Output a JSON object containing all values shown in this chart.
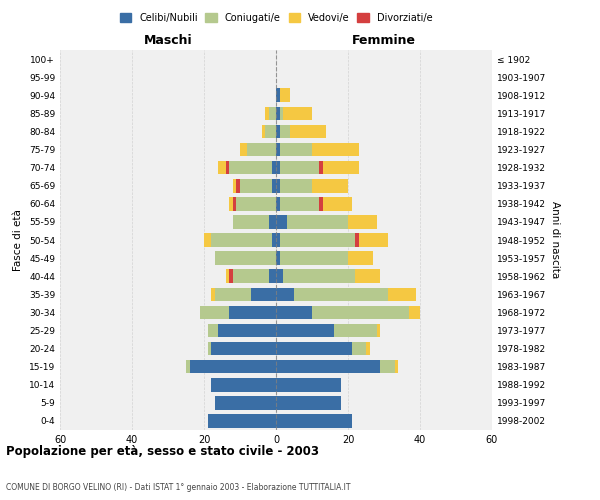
{
  "age_groups": [
    "0-4",
    "5-9",
    "10-14",
    "15-19",
    "20-24",
    "25-29",
    "30-34",
    "35-39",
    "40-44",
    "45-49",
    "50-54",
    "55-59",
    "60-64",
    "65-69",
    "70-74",
    "75-79",
    "80-84",
    "85-89",
    "90-94",
    "95-99",
    "100+"
  ],
  "birth_years": [
    "1998-2002",
    "1993-1997",
    "1988-1992",
    "1983-1987",
    "1978-1982",
    "1973-1977",
    "1968-1972",
    "1963-1967",
    "1958-1962",
    "1953-1957",
    "1948-1952",
    "1943-1947",
    "1938-1942",
    "1933-1937",
    "1928-1932",
    "1923-1927",
    "1918-1922",
    "1913-1917",
    "1908-1912",
    "1903-1907",
    "≤ 1902"
  ],
  "male": {
    "celibi": [
      19,
      17,
      18,
      24,
      18,
      16,
      13,
      7,
      2,
      0,
      1,
      2,
      0,
      1,
      1,
      0,
      0,
      0,
      0,
      0,
      0
    ],
    "coniugati": [
      0,
      0,
      0,
      1,
      1,
      3,
      8,
      10,
      10,
      17,
      17,
      10,
      11,
      9,
      12,
      8,
      3,
      2,
      0,
      0,
      0
    ],
    "vedovi": [
      0,
      0,
      0,
      0,
      0,
      0,
      0,
      1,
      1,
      0,
      2,
      0,
      1,
      1,
      2,
      2,
      1,
      1,
      0,
      0,
      0
    ],
    "divorziati": [
      0,
      0,
      0,
      0,
      0,
      0,
      0,
      0,
      1,
      0,
      0,
      0,
      1,
      1,
      1,
      0,
      0,
      0,
      0,
      0,
      0
    ]
  },
  "female": {
    "nubili": [
      21,
      18,
      18,
      29,
      21,
      16,
      10,
      5,
      2,
      1,
      1,
      3,
      1,
      1,
      1,
      1,
      1,
      1,
      1,
      0,
      0
    ],
    "coniugate": [
      0,
      0,
      0,
      4,
      4,
      12,
      27,
      26,
      20,
      19,
      21,
      17,
      11,
      9,
      11,
      9,
      3,
      1,
      0,
      0,
      0
    ],
    "vedove": [
      0,
      0,
      0,
      1,
      1,
      1,
      3,
      8,
      7,
      7,
      8,
      8,
      8,
      10,
      10,
      13,
      10,
      8,
      3,
      0,
      0
    ],
    "divorziate": [
      0,
      0,
      0,
      0,
      0,
      0,
      0,
      0,
      0,
      0,
      1,
      0,
      1,
      0,
      1,
      0,
      0,
      0,
      0,
      0,
      0
    ]
  },
  "colors": {
    "celibi_nubili": "#3a6ea5",
    "coniugati": "#b5c98e",
    "vedovi": "#f5c842",
    "divorziati": "#d43f3f"
  },
  "xlim": 60,
  "title": "Popolazione per età, sesso e stato civile - 2003",
  "subtitle": "COMUNE DI BORGO VELINO (RI) - Dati ISTAT 1° gennaio 2003 - Elaborazione TUTTITALIA.IT",
  "ylabel_left": "Fasce di età",
  "ylabel_right": "Anni di nascita",
  "xlabel_left": "Maschi",
  "xlabel_right": "Femmine",
  "bg_color": "#f0f0f0",
  "grid_color": "#cccccc"
}
